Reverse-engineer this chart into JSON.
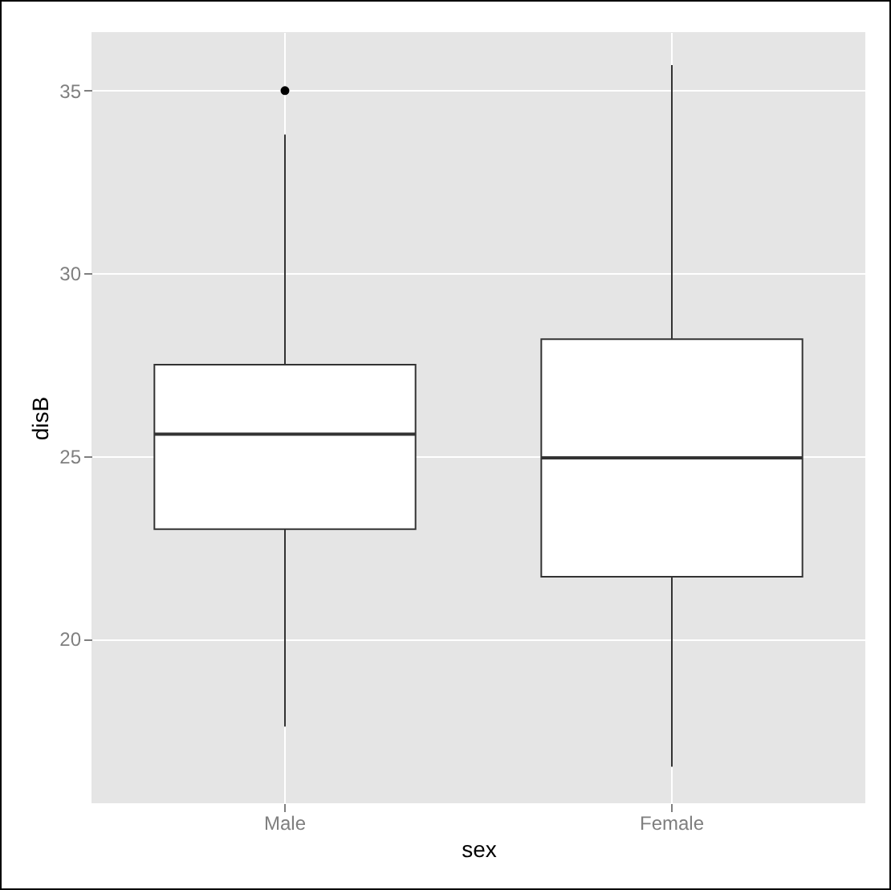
{
  "chart_data": {
    "type": "box",
    "xlabel": "sex",
    "ylabel": "disB",
    "categories": [
      "Male",
      "Female"
    ],
    "boxes": [
      {
        "low": 17.6,
        "q1": 23.0,
        "median": 25.6,
        "q3": 27.5,
        "high": 33.8,
        "outliers": [
          35.0
        ]
      },
      {
        "low": 16.5,
        "q1": 21.7,
        "median": 24.95,
        "q3": 28.2,
        "high": 35.7
      }
    ],
    "ylim": [
      15.5,
      36.6
    ],
    "yticks": [
      20,
      25,
      30,
      35
    ],
    "grid": true
  }
}
